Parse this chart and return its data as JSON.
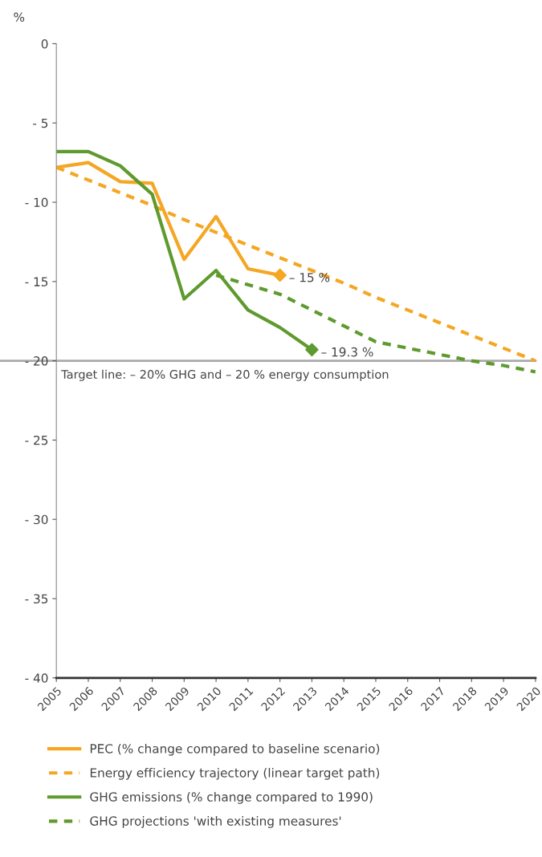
{
  "chart_data": {
    "type": "line",
    "ylabel": "%",
    "categories": [
      "2005",
      "2006",
      "2007",
      "2008",
      "2009",
      "2010",
      "2011",
      "2012",
      "2013",
      "2014",
      "2015",
      "2016",
      "2017",
      "2018",
      "2019",
      "2020"
    ],
    "series": [
      {
        "name": "PEC (% change compared to baseline scenario)",
        "color": "#f5a623",
        "line_style": "solid",
        "values": [
          -7.8,
          -7.5,
          -8.7,
          -8.8,
          -13.6,
          -10.9,
          -14.2,
          -14.6,
          null,
          null,
          null,
          null,
          null,
          null,
          null,
          null
        ]
      },
      {
        "name": "Energy efficiency trajectory (linear target path)",
        "color": "#f5a623",
        "line_style": "dashed",
        "values": [
          -7.8,
          -8.6,
          -9.4,
          -10.2,
          -11.1,
          -11.9,
          -12.7,
          -13.5,
          -14.3,
          -15.1,
          -16.0,
          -16.8,
          -17.6,
          -18.4,
          -19.2,
          -20.0
        ]
      },
      {
        "name": "GHG emissions (% change compared to 1990)",
        "color": "#5f9a2e",
        "line_style": "solid",
        "values": [
          -6.8,
          -6.8,
          -7.7,
          -9.5,
          -16.1,
          -14.3,
          -16.8,
          -17.9,
          -19.3,
          null,
          null,
          null,
          null,
          null,
          null,
          null
        ]
      },
      {
        "name": "GHG projections 'with existing measures'",
        "color": "#5f9a2e",
        "line_style": "dashed",
        "values": [
          null,
          null,
          null,
          null,
          null,
          -14.6,
          -15.2,
          -15.8,
          -16.8,
          -17.8,
          -18.8,
          -19.2,
          -19.6,
          -20.0,
          -20.3,
          -20.7
        ]
      },
      {
        "type": "scatter",
        "marker": "diamond",
        "color": "#f5a623",
        "values": [
          null,
          null,
          null,
          null,
          null,
          null,
          null,
          -14.6,
          null,
          null,
          null,
          null,
          null,
          null,
          null,
          null
        ]
      },
      {
        "type": "scatter",
        "marker": "diamond",
        "color": "#5f9a2e",
        "values": [
          null,
          null,
          null,
          null,
          null,
          null,
          null,
          null,
          -19.3,
          null,
          null,
          null,
          null,
          null,
          null,
          null
        ]
      }
    ],
    "ylim": [
      -40,
      0
    ],
    "yticks": [
      0,
      {
        "value": -5,
        "label": "- 5"
      },
      {
        "value": -10,
        "label": "- 10"
      },
      {
        "value": -15,
        "label": "- 15"
      },
      {
        "value": -20,
        "label": "- 20"
      },
      {
        "value": -25,
        "label": "- 25"
      },
      {
        "value": -30,
        "label": "- 30"
      },
      {
        "value": -35,
        "label": "- 35"
      },
      {
        "value": -40,
        "label": "- 40"
      }
    ],
    "ref_lines": [
      {
        "axis": "y",
        "value": -20,
        "label": "Target line: – 20% GHG and – 20 % energy consumption",
        "color": "#aaaaaa"
      }
    ],
    "annotations": [
      {
        "text": "– 15 %",
        "x": "2012",
        "y": -14.6
      },
      {
        "text": "– 19.3 %",
        "x": "2013",
        "y": -19.3
      }
    ],
    "grid": false,
    "legend": "bottom"
  }
}
